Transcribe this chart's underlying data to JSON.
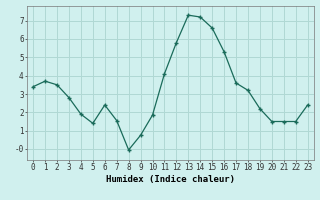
{
  "x": [
    0,
    1,
    2,
    3,
    4,
    5,
    6,
    7,
    8,
    9,
    10,
    11,
    12,
    13,
    14,
    15,
    16,
    17,
    18,
    19,
    20,
    21,
    22,
    23
  ],
  "y": [
    3.4,
    3.7,
    3.5,
    2.8,
    1.9,
    1.4,
    2.4,
    1.55,
    -0.05,
    0.75,
    1.85,
    4.1,
    5.8,
    7.3,
    7.2,
    6.6,
    5.3,
    3.6,
    3.2,
    2.2,
    1.5,
    1.5,
    1.5,
    2.4
  ],
  "xlabel": "Humidex (Indice chaleur)",
  "bg_color": "#d0f0ee",
  "grid_color": "#b0d8d4",
  "line_color": "#1a6b5a",
  "marker_color": "#1a6b5a",
  "ylim": [
    -0.6,
    7.8
  ],
  "xlim": [
    -0.5,
    23.5
  ],
  "yticks": [
    0,
    1,
    2,
    3,
    4,
    5,
    6,
    7
  ],
  "xticks": [
    0,
    1,
    2,
    3,
    4,
    5,
    6,
    7,
    8,
    9,
    10,
    11,
    12,
    13,
    14,
    15,
    16,
    17,
    18,
    19,
    20,
    21,
    22,
    23
  ],
  "tick_fontsize": 5.5,
  "xlabel_fontsize": 6.5
}
